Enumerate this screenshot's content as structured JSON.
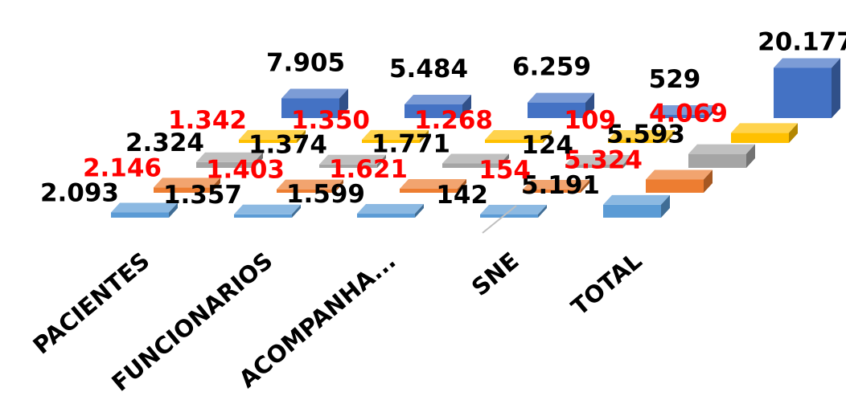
{
  "chart_data": {
    "type": "bar",
    "subtype": "3d-column",
    "categories": [
      "PACIENTES",
      "FUNCIONARIOS",
      "ACOMPANHA...",
      "SNE",
      "TOTAL"
    ],
    "series": [
      {
        "values": [
          2093,
          1357,
          1599,
          142,
          5191
        ],
        "labels": [
          "2.093",
          "1.357",
          "1.599",
          "142",
          "5.191"
        ],
        "color": "#5B9BD5",
        "label_color": "#000000"
      },
      {
        "values": [
          2146,
          1403,
          1621,
          154,
          5324
        ],
        "labels": [
          "2.146",
          "1.403",
          "1.621",
          "154",
          "5.324"
        ],
        "color": "#ED7D31",
        "label_color": "#FF0000"
      },
      {
        "values": [
          2324,
          1374,
          1771,
          124,
          5593
        ],
        "labels": [
          "2.324",
          "1.374",
          "1.771",
          "124",
          "5.593"
        ],
        "color": "#A5A5A5",
        "label_color": "#000000"
      },
      {
        "values": [
          1342,
          1350,
          1268,
          109,
          4069
        ],
        "labels": [
          "1.342",
          "1.350",
          "1.268",
          "109",
          "4.069"
        ],
        "color": "#FFC000",
        "label_color": "#FF0000"
      },
      {
        "values": [
          7905,
          5484,
          6259,
          529,
          20177
        ],
        "labels": [
          "7.905",
          "5.484",
          "6.259",
          "529",
          "20.177"
        ],
        "color": "#4472C4",
        "label_color": "#000000"
      }
    ],
    "grid": false,
    "legend": false
  }
}
